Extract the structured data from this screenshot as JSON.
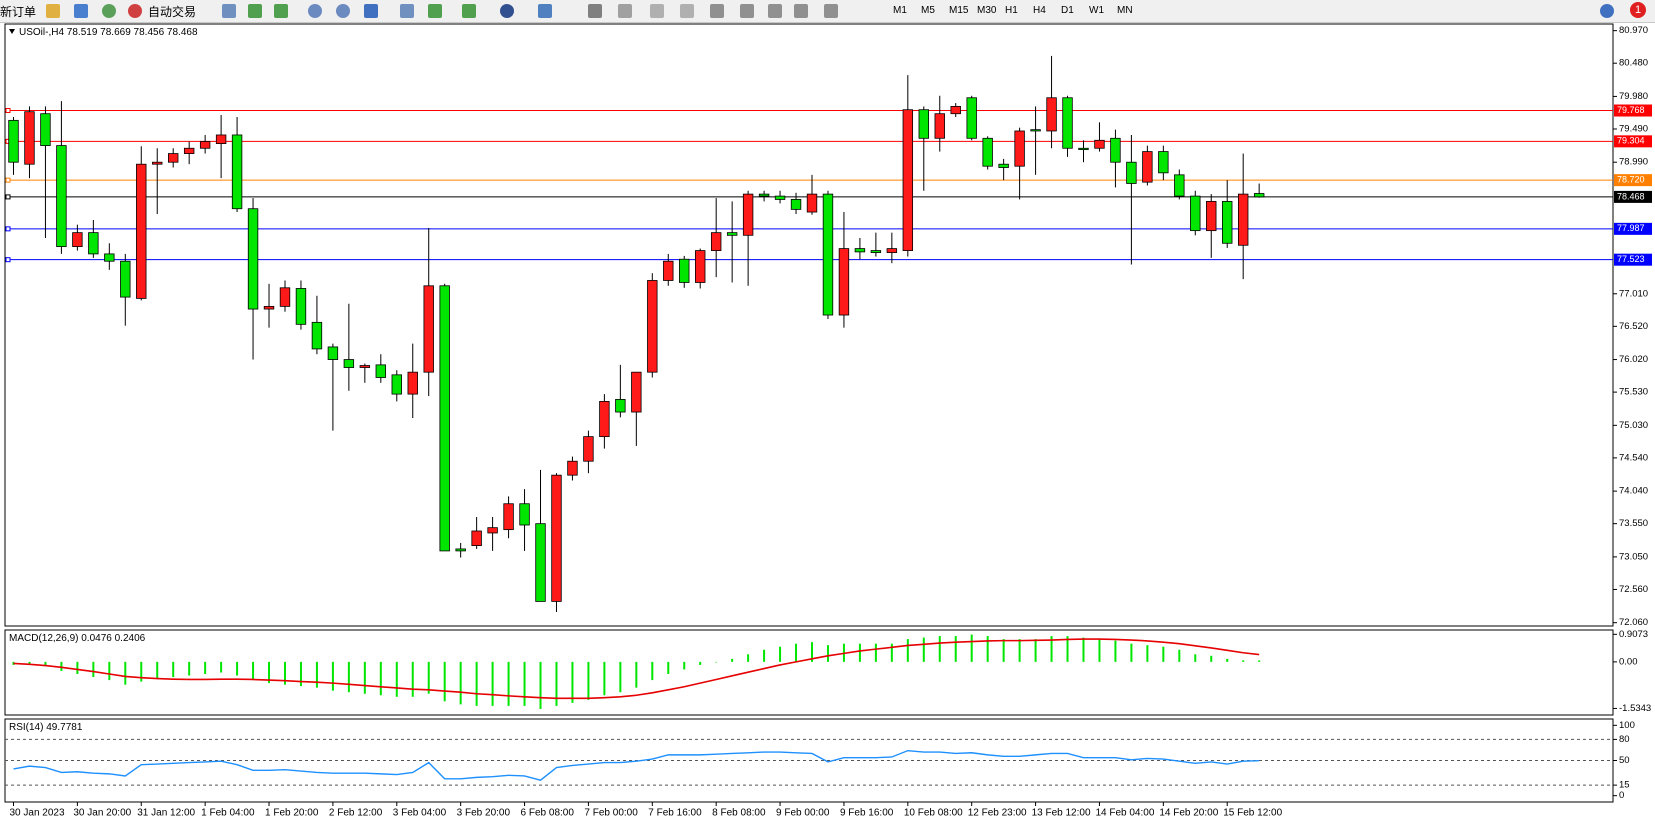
{
  "toolbar": {
    "new_order": "新订单",
    "auto_trading": "自动交易",
    "timeframes": [
      "M1",
      "M5",
      "M15",
      "M30",
      "H1",
      "H4",
      "D1",
      "W1",
      "MN"
    ],
    "notification_count": 1
  },
  "chart_data": [
    {
      "type": "candlestick",
      "title": "USOil-,H4",
      "up_color": "#ff1a1a",
      "down_color": "#00e600",
      "wick_color": "#000000",
      "categories": [
        "30 Jan 2023",
        null,
        null,
        null,
        "30 Jan 20:00",
        null,
        null,
        null,
        "31 Jan 12:00",
        null,
        null,
        null,
        "1 Feb 04:00",
        null,
        null,
        null,
        "1 Feb 20:00",
        null,
        null,
        null,
        "2 Feb 12:00",
        null,
        null,
        null,
        "3 Feb 04:00",
        null,
        null,
        null,
        "3 Feb 20:00",
        null,
        null,
        null,
        "6 Feb 08:00",
        null,
        null,
        null,
        "7 Feb 00:00",
        null,
        null,
        null,
        "7 Feb 16:00",
        null,
        null,
        null,
        "8 Feb 08:00",
        null,
        null,
        null,
        "9 Feb 00:00",
        null,
        null,
        null,
        "9 Feb 16:00",
        null,
        null,
        null,
        "10 Feb 08:00",
        null,
        null,
        null,
        "12 Feb 23:00",
        null,
        null,
        null,
        "13 Feb 12:00",
        null,
        null,
        null,
        "14 Feb 04:00",
        null,
        null,
        null,
        "14 Feb 20:00",
        null,
        null,
        null,
        "15 Feb 12:00",
        null,
        null
      ],
      "open": [
        79.62,
        78.96,
        79.72,
        79.24,
        77.72,
        77.93,
        77.61,
        77.5,
        76.94,
        78.96,
        78.99,
        79.12,
        79.2,
        79.27,
        79.4,
        78.29,
        76.78,
        76.82,
        77.09,
        76.58,
        76.21,
        76.02,
        75.9,
        75.94,
        75.79,
        75.5,
        75.83,
        77.13,
        73.17,
        73.22,
        73.41,
        73.46,
        73.85,
        73.55,
        72.38,
        74.28,
        74.49,
        74.86,
        75.42,
        75.23,
        75.83,
        77.21,
        77.53,
        77.18,
        77.66,
        77.93,
        77.89,
        78.51,
        78.48,
        78.43,
        78.24,
        78.51,
        76.69,
        77.69,
        77.66,
        77.63,
        77.66,
        79.78,
        79.35,
        79.72,
        79.96,
        79.35,
        78.96,
        78.93,
        79.48,
        79.46,
        79.96,
        79.2,
        79.2,
        79.35,
        78.99,
        78.69,
        79.15,
        78.8,
        78.48,
        77.96,
        78.4,
        77.74,
        78.519
      ],
      "high": [
        79.67,
        79.83,
        79.83,
        79.91,
        78.05,
        78.12,
        77.77,
        77.61,
        79.23,
        79.2,
        79.2,
        79.3,
        79.4,
        79.7,
        79.67,
        78.45,
        77.16,
        77.21,
        77.21,
        76.98,
        76.26,
        76.86,
        75.96,
        76.1,
        75.86,
        76.26,
        78.0,
        77.16,
        73.26,
        73.65,
        73.65,
        73.96,
        74.07,
        74.36,
        74.31,
        74.56,
        74.95,
        75.5,
        75.94,
        75.83,
        77.32,
        77.61,
        77.58,
        77.69,
        78.45,
        78.4,
        78.56,
        78.56,
        78.56,
        78.53,
        78.8,
        78.56,
        78.24,
        77.85,
        77.93,
        77.93,
        80.3,
        79.83,
        79.99,
        79.88,
        79.99,
        79.38,
        79.04,
        79.51,
        79.83,
        80.59,
        79.99,
        79.32,
        79.59,
        79.48,
        79.4,
        79.24,
        79.24,
        78.88,
        78.56,
        78.51,
        78.72,
        79.12,
        78.669
      ],
      "low": [
        78.8,
        78.75,
        77.85,
        77.61,
        77.66,
        77.55,
        77.37,
        76.53,
        76.91,
        78.21,
        78.91,
        78.96,
        79.12,
        78.75,
        78.24,
        76.02,
        76.5,
        76.74,
        76.47,
        76.1,
        74.95,
        75.55,
        75.67,
        75.67,
        75.39,
        75.14,
        75.47,
        73.14,
        73.04,
        73.17,
        73.14,
        73.33,
        73.14,
        72.38,
        72.22,
        74.2,
        74.31,
        74.68,
        75.15,
        74.72,
        75.75,
        77.13,
        77.1,
        77.09,
        77.26,
        77.18,
        77.13,
        78.4,
        78.37,
        78.21,
        78.2,
        76.63,
        76.5,
        77.53,
        77.57,
        77.47,
        77.57,
        78.56,
        79.15,
        79.67,
        79.32,
        78.88,
        78.72,
        78.43,
        78.8,
        79.2,
        79.07,
        78.99,
        79.15,
        78.61,
        77.45,
        78.64,
        78.72,
        78.43,
        77.89,
        77.55,
        77.7,
        77.23,
        78.456
      ],
      "close": [
        78.99,
        79.75,
        79.24,
        77.72,
        77.93,
        77.61,
        77.5,
        76.96,
        78.96,
        78.99,
        79.12,
        79.2,
        79.3,
        79.4,
        78.29,
        76.78,
        76.82,
        77.1,
        76.55,
        76.18,
        76.02,
        75.9,
        75.93,
        75.75,
        75.5,
        75.83,
        77.13,
        73.14,
        73.14,
        73.44,
        73.49,
        73.85,
        73.53,
        72.38,
        74.28,
        74.49,
        74.86,
        75.39,
        75.23,
        75.83,
        77.21,
        77.5,
        77.18,
        77.66,
        77.93,
        77.89,
        78.51,
        78.48,
        78.43,
        78.28,
        78.51,
        76.69,
        77.69,
        77.64,
        77.63,
        77.69,
        79.78,
        79.35,
        79.72,
        79.83,
        79.35,
        78.93,
        78.91,
        79.46,
        79.46,
        79.96,
        79.2,
        79.18,
        79.32,
        78.99,
        78.67,
        79.15,
        78.83,
        78.48,
        77.96,
        78.4,
        77.77,
        78.51,
        78.468
      ],
      "levels": {
        "values": [
          79.768,
          79.304,
          78.72,
          78.468,
          77.987,
          77.523
        ],
        "value_labels": [
          "79.768",
          "79.304",
          "78.720",
          "78.468",
          "77.987",
          "77.523"
        ],
        "colors": [
          "#ff0000",
          "#ff0000",
          "#ff8000",
          "#000000",
          "#0000ff",
          "#0000ff"
        ]
      },
      "ylim": [
        72.01,
        81.07
      ],
      "yticks": [
        {
          "value": 80.97,
          "label": "80.970"
        },
        {
          "value": 80.48,
          "label": "80.480"
        },
        {
          "value": 79.98,
          "label": "79.980"
        },
        {
          "value": 79.49,
          "label": "79.490"
        },
        {
          "value": 78.99,
          "label": "78.990"
        },
        {
          "value": 77.01,
          "label": "77.010"
        },
        {
          "value": 76.52,
          "label": "76.520"
        },
        {
          "value": 76.02,
          "label": "76.020"
        },
        {
          "value": 75.53,
          "label": "75.530"
        },
        {
          "value": 75.03,
          "label": "75.030"
        },
        {
          "value": 74.54,
          "label": "74.540"
        },
        {
          "value": 74.04,
          "label": "74.040"
        },
        {
          "value": 73.55,
          "label": "73.550"
        },
        {
          "value": 73.05,
          "label": "73.050"
        },
        {
          "value": 72.56,
          "label": "72.560"
        },
        {
          "value": 72.06,
          "label": "72.060"
        }
      ]
    },
    {
      "type": "macd",
      "title": "MACD(12,26,9)",
      "series": [
        {
          "type": "bar",
          "color": "#00e600",
          "values": [
            -0.1,
            -0.1,
            -0.15,
            -0.3,
            -0.4,
            -0.5,
            -0.6,
            -0.75,
            -0.65,
            -0.55,
            -0.5,
            -0.45,
            -0.4,
            -0.35,
            -0.45,
            -0.6,
            -0.7,
            -0.75,
            -0.8,
            -0.85,
            -0.95,
            -1.0,
            -1.05,
            -1.1,
            -1.15,
            -1.15,
            -1.05,
            -1.3,
            -1.4,
            -1.45,
            -1.45,
            -1.45,
            -1.45,
            -1.55,
            -1.45,
            -1.35,
            -1.25,
            -1.1,
            -1.0,
            -0.85,
            -0.6,
            -0.4,
            -0.25,
            -0.1,
            0.0,
            0.1,
            0.25,
            0.4,
            0.5,
            0.6,
            0.65,
            0.55,
            0.6,
            0.6,
            0.6,
            0.6,
            0.75,
            0.8,
            0.85,
            0.85,
            0.9,
            0.85,
            0.75,
            0.75,
            0.75,
            0.85,
            0.85,
            0.8,
            0.75,
            0.7,
            0.6,
            0.55,
            0.5,
            0.4,
            0.25,
            0.2,
            0.1,
            0.05,
            0.0476
          ]
        },
        {
          "type": "line",
          "color": "#e60000",
          "values": [
            -0.05,
            -0.08,
            -0.12,
            -0.18,
            -0.25,
            -0.32,
            -0.4,
            -0.48,
            -0.52,
            -0.55,
            -0.57,
            -0.58,
            -0.58,
            -0.57,
            -0.57,
            -0.58,
            -0.6,
            -0.62,
            -0.65,
            -0.67,
            -0.7,
            -0.74,
            -0.78,
            -0.82,
            -0.86,
            -0.9,
            -0.92,
            -0.96,
            -1.0,
            -1.05,
            -1.08,
            -1.12,
            -1.15,
            -1.18,
            -1.2,
            -1.2,
            -1.2,
            -1.18,
            -1.15,
            -1.1,
            -1.02,
            -0.92,
            -0.82,
            -0.7,
            -0.58,
            -0.46,
            -0.34,
            -0.22,
            -0.1,
            0.0,
            0.1,
            0.2,
            0.28,
            0.36,
            0.42,
            0.48,
            0.54,
            0.58,
            0.62,
            0.65,
            0.67,
            0.69,
            0.7,
            0.7,
            0.71,
            0.72,
            0.74,
            0.75,
            0.75,
            0.74,
            0.72,
            0.69,
            0.65,
            0.6,
            0.53,
            0.46,
            0.38,
            0.3,
            0.2406
          ]
        }
      ],
      "ylim": [
        -1.75,
        1.05
      ],
      "yticks": [
        0.9073,
        {
          "value": 0,
          "label": "0.00"
        },
        -1.5343
      ]
    },
    {
      "type": "line",
      "title": "RSI(14)",
      "color": "#1e90ff",
      "values": [
        38,
        42,
        40,
        33,
        34,
        32,
        31,
        28,
        44,
        45,
        46,
        47,
        48,
        49,
        44,
        36,
        36,
        37,
        35,
        33,
        32,
        32,
        32,
        31,
        30,
        33,
        47,
        24,
        24,
        26,
        27,
        29,
        28,
        22,
        40,
        43,
        45,
        47,
        47,
        49,
        52,
        58,
        58,
        58,
        59,
        60,
        61,
        62,
        62,
        61,
        60,
        48,
        54,
        54,
        54,
        55,
        64,
        62,
        62,
        60,
        61,
        58,
        56,
        56,
        58,
        60,
        60,
        54,
        54,
        54,
        51,
        53,
        52,
        49,
        46,
        48,
        45,
        49,
        49.7781
      ],
      "levels": [
        80,
        50,
        15
      ],
      "ylim": [
        -9,
        109
      ],
      "yticks": [
        100,
        80,
        50,
        15,
        0
      ]
    }
  ]
}
